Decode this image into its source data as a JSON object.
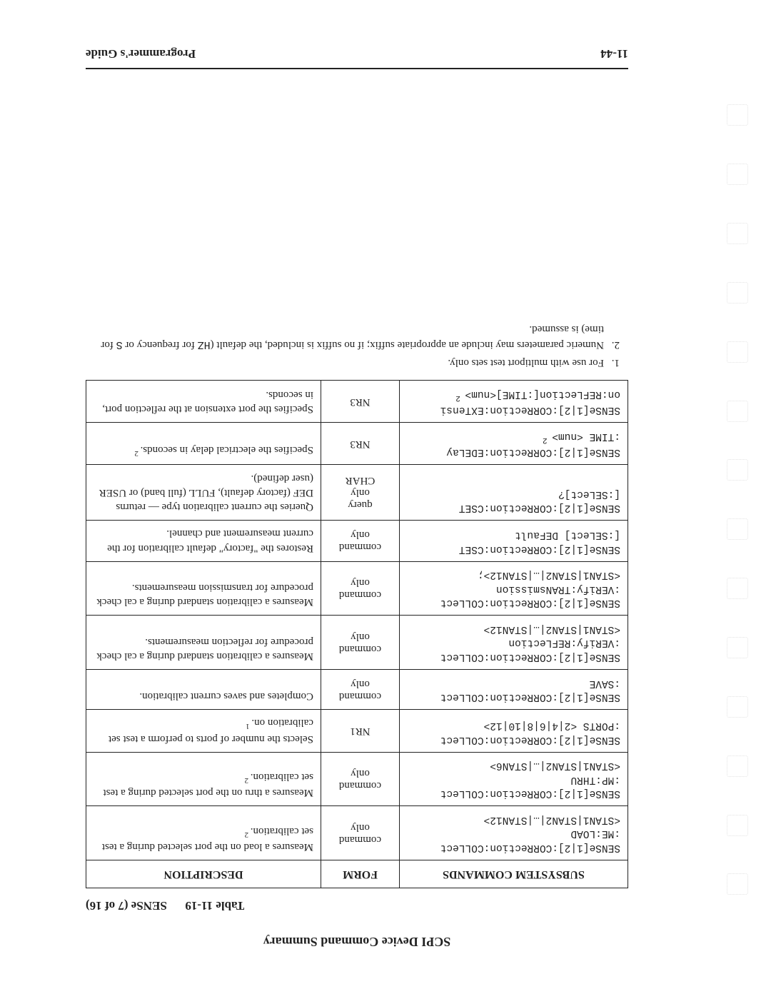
{
  "header": {
    "title": "SCPI Device Command Summary"
  },
  "caption": {
    "table_label": "Table 11-19",
    "sense_label": "SENSe (7 of 16)"
  },
  "table": {
    "headers": [
      "SUBSYSTEM COMMANDS",
      "FORM",
      "DESCRIPTION"
    ],
    "rows": [
      {
        "cmd": "SENSe[1|2]:CORRection:COLLect\n:ME:LOAD\n<STAN1|STAN2|…|STAN12>",
        "form": "command only",
        "desc": "Measures a load on the port selected during a test set calibration.",
        "sup": "2"
      },
      {
        "cmd": "SENSe[1|2]:CORRection:COLLect\n:MP:THRU\n<STAN1|STAN2|…|STAN6>",
        "form": "command only",
        "desc": "Measures a thru on the port selected during a test set calibration.",
        "sup": "2"
      },
      {
        "cmd": "SENSe[1|2]:CORRection:COLLect\n:PORTS <2|4|6|8|10|12>",
        "form": "NR1",
        "desc": "Selects the number of ports to perform a test set calibration on.",
        "sup": "1"
      },
      {
        "cmd": "SENSe[1|2]:CORRection:COLLect\n:SAVE",
        "form": "command only",
        "desc": "Completes and saves current calibration.",
        "sup": ""
      },
      {
        "cmd": "SENSe[1|2]:CORRection:COLLect\n:VERify:REFLection\n<STAN1|STAN2|…|STAN12>",
        "form": "command only",
        "desc": "Measures a calibration standard during a cal check procedure for reflection measurements.",
        "sup": ""
      },
      {
        "cmd": "SENSe[1|2]:CORRection:COLLect\n:VERify:TRANsmission\n<STAN1|STAN2|…|STAN12>;",
        "form": "command only",
        "desc": "Measures a calibration standard during a cal check procedure for transmission measurements.",
        "sup": ""
      },
      {
        "cmd": "SENSe[1|2]:CORRection:CSET\n[:SELect] DEFault",
        "form": "command only",
        "desc": "Restores the \"factory\" default calibration for the current measurement and channel.",
        "sup": ""
      },
      {
        "cmd": "SENSe[1|2]:CORRection:CSET\n[:SELect]?",
        "form": "query only CHAR",
        "desc": "Queries the current calibration type — returns DEF (factory default), FULL (full band) or USER (user defined).",
        "sup": ""
      },
      {
        "cmd": "SENSe[1|2]:CORRection:EDELay\n:TIME <num>",
        "form": "NR3",
        "desc": "Specifies the electrical delay in seconds.",
        "sup": "2",
        "cmd_sup_after": "2"
      },
      {
        "cmd": "SENSe[1|2]:CORRection:EXTensi\non:REFLection[:TIME]<num>",
        "form": "NR3",
        "desc": "Specifies the port extension at the reflection port, in seconds.",
        "sup": "",
        "cmd_sup_after": "2"
      }
    ]
  },
  "notes": {
    "n1": "For use with multiport test sets only.",
    "n2_pre": "Numeric parameters may include an appropriate suffix; if no suffix is included, the default (",
    "n2_code1": "HZ",
    "n2_mid": " for frequency or ",
    "n2_code2": "S",
    "n2_post": " for time) is assumed."
  },
  "footer": {
    "left": "11-44",
    "right": "Programmer's Guide"
  }
}
